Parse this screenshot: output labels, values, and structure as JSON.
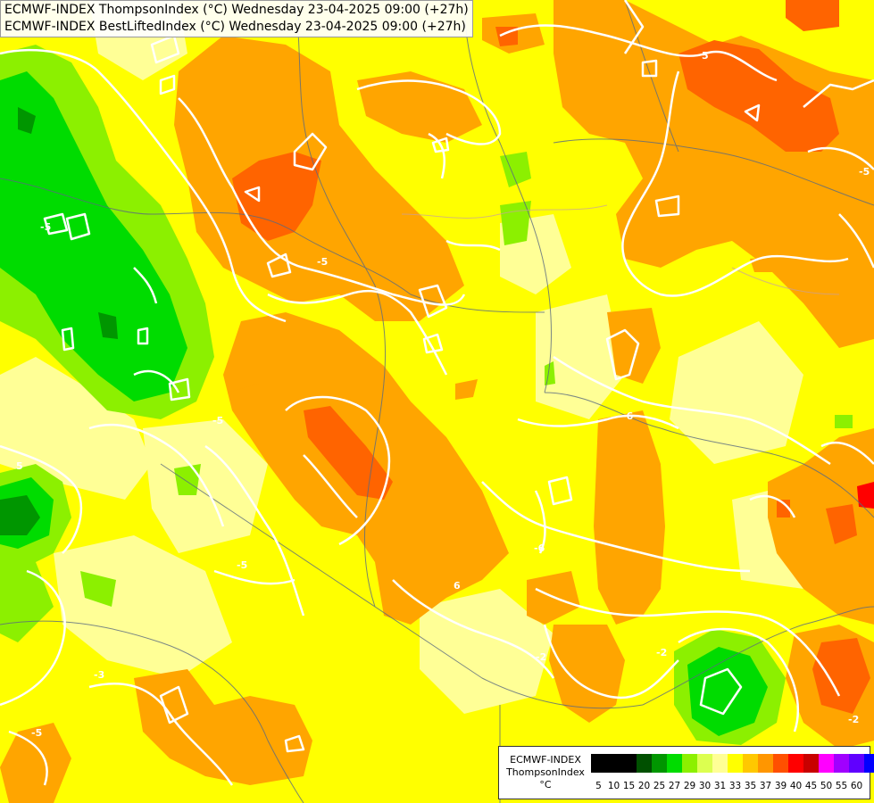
{
  "header": {
    "line1": "ECMWF-INDEX ThompsonIndex (°C) Wednesday 23-04-2025 09:00 (+27h)",
    "line2": "ECMWF-INDEX BestLiftedIndex (°C) Wednesday 23-04-2025 09:00 (+27h)"
  },
  "legend": {
    "source": "ECMWF-INDEX",
    "name": "ThompsonIndex",
    "unit": "°C",
    "items": [
      {
        "label": "5",
        "color": "#000000"
      },
      {
        "label": "10",
        "color": "#000000"
      },
      {
        "label": "15",
        "color": "#000000"
      },
      {
        "label": "20",
        "color": "#005000"
      },
      {
        "label": "25",
        "color": "#009600"
      },
      {
        "label": "27",
        "color": "#00dc00"
      },
      {
        "label": "29",
        "color": "#8cf000"
      },
      {
        "label": "30",
        "color": "#dcff50"
      },
      {
        "label": "31",
        "color": "#ffff96"
      },
      {
        "label": "33",
        "color": "#ffff00"
      },
      {
        "label": "35",
        "color": "#ffc800"
      },
      {
        "label": "37",
        "color": "#ff9600"
      },
      {
        "label": "39",
        "color": "#ff5000"
      },
      {
        "label": "40",
        "color": "#ff0000"
      },
      {
        "label": "45",
        "color": "#c80000"
      },
      {
        "label": "50",
        "color": "#ff00ff"
      },
      {
        "label": "55",
        "color": "#a000ff"
      },
      {
        "label": "60",
        "color": "#6000ff"
      },
      {
        "label": "",
        "color": "#0000ff"
      }
    ]
  },
  "contour_labels": [
    "5",
    "-5",
    "-5",
    "-5",
    "5",
    "-6",
    "6",
    "-6",
    "-5",
    "-5",
    "-5",
    "-5",
    "-2",
    "-2",
    "-2",
    "-3"
  ]
}
